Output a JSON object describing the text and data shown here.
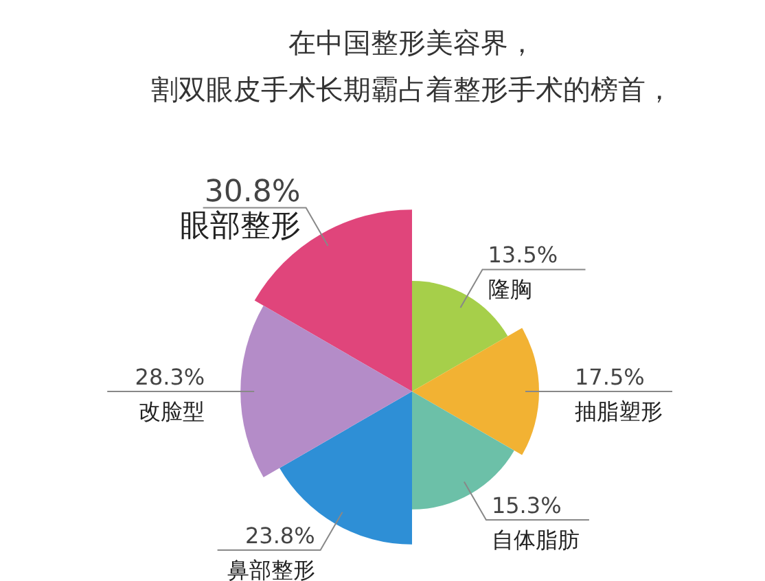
{
  "chart_data": {
    "type": "other",
    "title": "在中国整形美容界，",
    "subtitle": "割双眼皮手术长期霸占着整形手术的榜首，",
    "categories": [
      "眼部整形",
      "隆胸",
      "抽脂塑形",
      "自体脂肪",
      "鼻部整形",
      "改脸型"
    ],
    "values": [
      30.8,
      13.5,
      17.5,
      15.3,
      23.8,
      28.3
    ],
    "value_labels": [
      "30.8%",
      "13.5%",
      "17.5%",
      "15.3%",
      "23.8%",
      "28.3%"
    ],
    "colors": [
      "#e0457b",
      "#a6cf4a",
      "#f2b233",
      "#6cc0a8",
      "#2e8fd6",
      "#b48cc8"
    ]
  }
}
